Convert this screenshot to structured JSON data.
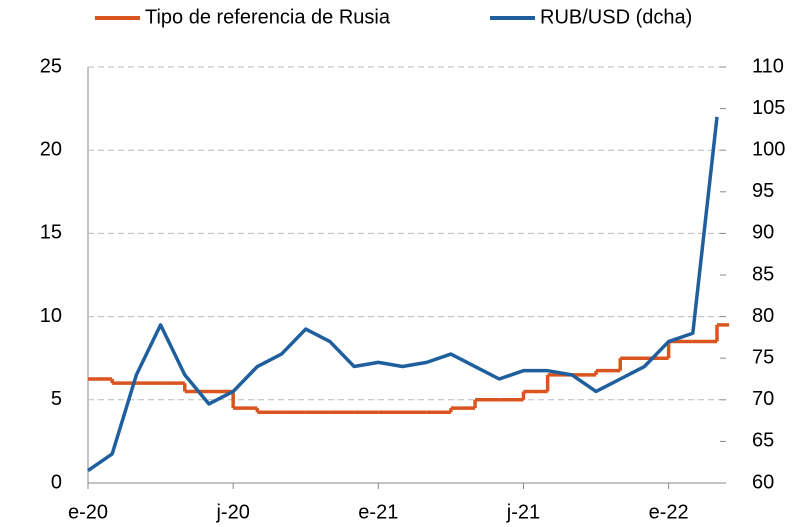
{
  "chart_data": {
    "type": "line",
    "x": [
      "2020-01",
      "2020-02",
      "2020-03",
      "2020-04",
      "2020-05",
      "2020-06",
      "2020-07",
      "2020-08",
      "2020-09",
      "2020-10",
      "2020-11",
      "2020-12",
      "2021-01",
      "2021-02",
      "2021-03",
      "2021-04",
      "2021-05",
      "2021-06",
      "2021-07",
      "2021-08",
      "2021-09",
      "2021-10",
      "2021-11",
      "2021-12",
      "2022-01",
      "2022-02",
      "2022-03"
    ],
    "series": [
      {
        "name": "Tipo de referencia de Rusia",
        "color": "#d9541e",
        "step": true,
        "values": [
          6.25,
          6.0,
          6.0,
          6.0,
          5.5,
          5.5,
          4.5,
          4.25,
          4.25,
          4.25,
          4.25,
          4.25,
          4.25,
          4.25,
          4.25,
          4.5,
          5.0,
          5.0,
          5.5,
          6.5,
          6.5,
          6.75,
          7.5,
          7.5,
          8.5,
          8.5,
          9.5
        ]
      },
      {
        "name": "RUB/USD (dcha)",
        "color": "#1f5f9e",
        "axis": "y2",
        "values": [
          61.5,
          63.5,
          73,
          79,
          73,
          69.5,
          71,
          74,
          75.5,
          78.5,
          77,
          74,
          74.5,
          74,
          74.5,
          75.5,
          74,
          72.5,
          73.5,
          73.5,
          73,
          71,
          72.5,
          74,
          77,
          78,
          104
        ]
      }
    ],
    "xlim": [
      "2020-01",
      "2022-03"
    ],
    "xticks": [
      {
        "value": "2020-01",
        "label": "e-20"
      },
      {
        "value": "2020-07",
        "label": "j-20"
      },
      {
        "value": "2021-01",
        "label": "e-21"
      },
      {
        "value": "2021-07",
        "label": "j-21"
      },
      {
        "value": "2022-01",
        "label": "e-22"
      }
    ],
    "ylim": [
      0,
      25
    ],
    "yticks": [
      0,
      5,
      10,
      15,
      20,
      25
    ],
    "y2lim": [
      60,
      110
    ],
    "y2ticks": [
      60,
      65,
      70,
      75,
      80,
      85,
      90,
      95,
      100,
      105,
      110
    ],
    "grid": true,
    "legend": "top"
  }
}
